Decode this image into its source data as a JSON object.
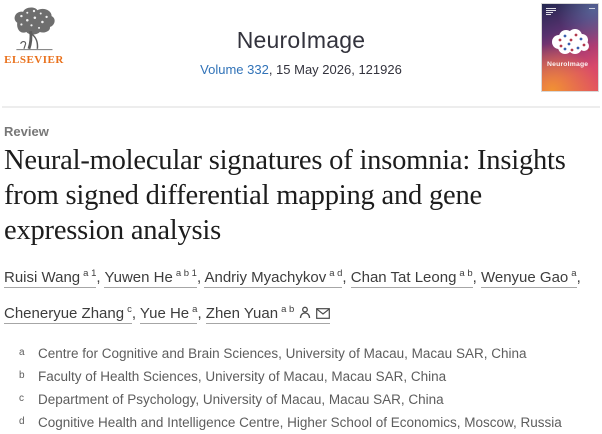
{
  "journal": {
    "name": "NeuroImage",
    "volume_link": "Volume 332",
    "issue_info": ", 15 May 2026, 121926",
    "publisher": "ELSEVIER",
    "cover_title": "NeuroImage"
  },
  "article": {
    "type_label": "Review",
    "title": "Neural-molecular signatures of insomnia: Insights from signed differential mapping and gene expression analysis"
  },
  "authors": [
    {
      "name": "Ruisi Wang",
      "sup": "a 1"
    },
    {
      "name": "Yuwen He",
      "sup": "a b 1"
    },
    {
      "name": "Andriy Myachykov",
      "sup": "a d"
    },
    {
      "name": "Chan Tat Leong",
      "sup": "a b"
    },
    {
      "name": "Wenyue Gao",
      "sup": "a"
    },
    {
      "name": "Cheneryue Zhang",
      "sup": "c"
    },
    {
      "name": "Yue He",
      "sup": "a"
    },
    {
      "name": "Zhen Yuan",
      "sup": "a b",
      "icons": [
        "person-icon",
        "envelope-icon"
      ]
    }
  ],
  "affiliations": [
    {
      "sup": "a",
      "text": "Centre for Cognitive and Brain Sciences, University of Macau, Macau SAR, China"
    },
    {
      "sup": "b",
      "text": "Faculty of Health Sciences, University of Macau, Macau SAR, China"
    },
    {
      "sup": "c",
      "text": "Department of Psychology, University of Macau, Macau SAR, China"
    },
    {
      "sup": "d",
      "text": "Cognitive Health and Intelligence Centre, Higher School of Economics, Moscow, Russia"
    }
  ],
  "colors": {
    "link_blue": "#3173b8",
    "elsevier_orange": "#e9711c",
    "divider": "#ededed",
    "title_text": "#1d1d1d",
    "author_text": "#3d3d3d",
    "affiliation_text": "#5d5d5d",
    "label_gray": "#777777",
    "cover_navy": "#232850",
    "cover_magenta": "#a93b73",
    "cover_orange": "#f29630"
  }
}
